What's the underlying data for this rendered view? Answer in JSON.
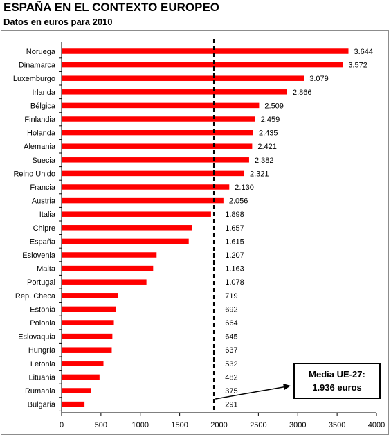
{
  "header": {
    "title": "ESPAÑA EN EL CONTEXTO EUROPEO",
    "subtitle": "Datos en euros para 2010"
  },
  "chart_data": {
    "type": "bar",
    "orientation": "horizontal",
    "title": "ESPAÑA EN EL CONTEXTO EUROPEO",
    "subtitle": "Datos en euros para 2010",
    "xlabel": "",
    "ylabel": "",
    "xlim": [
      0,
      4000
    ],
    "x_ticks": [
      0,
      500,
      1000,
      1500,
      2000,
      2500,
      3000,
      3500,
      4000
    ],
    "bar_color": "#ff0000",
    "categories": [
      "Noruega",
      "Dinamarca",
      "Luxemburgo",
      "Irlanda",
      "Bélgica",
      "Finlandia",
      "Holanda",
      "Alemania",
      "Suecia",
      "Reino Unido",
      "Francia",
      "Austria",
      "Italia",
      "Chipre",
      "España",
      "Eslovenia",
      "Malta",
      "Portugal",
      "Rep. Checa",
      "Estonia",
      "Polonia",
      "Eslovaquia",
      "Hungría",
      "Letonia",
      "Lituania",
      "Rumania",
      "Bulgaria"
    ],
    "values": [
      3644,
      3572,
      3079,
      2866,
      2509,
      2459,
      2435,
      2421,
      2382,
      2321,
      2130,
      2056,
      1898,
      1657,
      1615,
      1207,
      1163,
      1078,
      719,
      692,
      664,
      645,
      637,
      532,
      482,
      375,
      291
    ],
    "value_labels": [
      "3.644",
      "3.572",
      "3.079",
      "2.866",
      "2.509",
      "2.459",
      "2.435",
      "2.421",
      "2.382",
      "2.321",
      "2.130",
      "2.056",
      "1.898",
      "1.657",
      "1.615",
      "1.207",
      "1.163",
      "1.078",
      "719",
      "692",
      "664",
      "645",
      "637",
      "532",
      "482",
      "375",
      "291"
    ],
    "reference_line": {
      "value": 1936,
      "style": "dashed",
      "color": "#000000"
    },
    "annotation": {
      "line1": "Media UE-27:",
      "line2": "1.936 euros"
    }
  }
}
